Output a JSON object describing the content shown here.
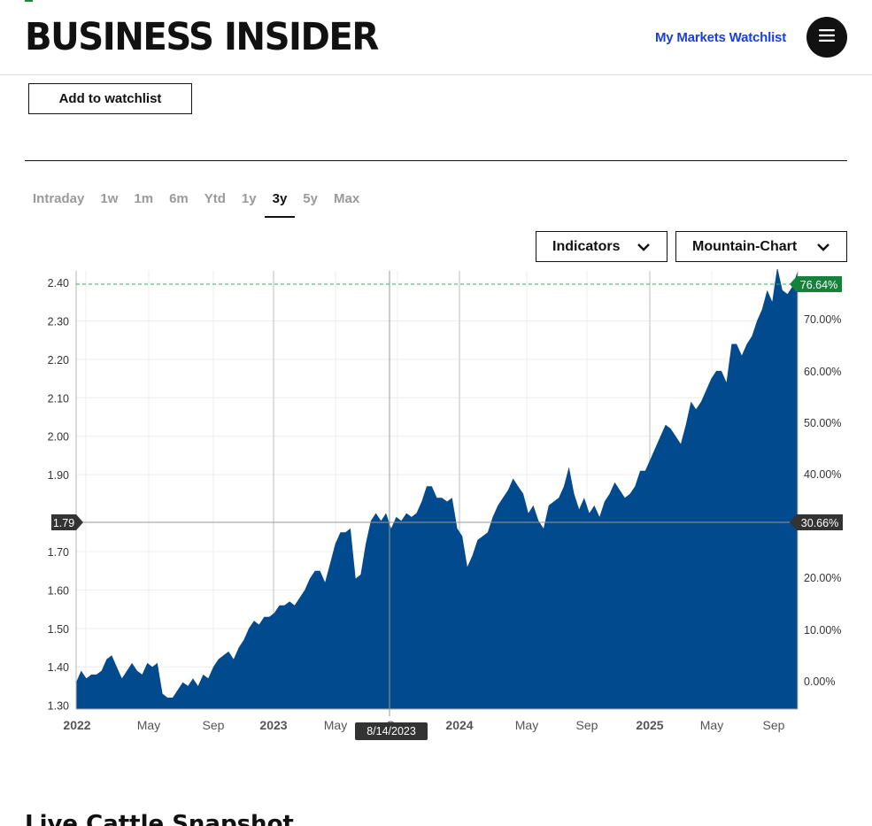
{
  "header": {
    "logo": "BUSINESS INSIDER",
    "watchlist_link": "My Markets Watchlist",
    "menu_icon": "hamburger-icon"
  },
  "actions": {
    "add_watchlist": "Add to watchlist"
  },
  "range_tabs": [
    "Intraday",
    "1w",
    "1m",
    "6m",
    "Ytd",
    "1y",
    "3y",
    "5y",
    "Max"
  ],
  "active_range": "3y",
  "dropdowns": {
    "indicators": "Indicators",
    "chart_type": "Mountain-Chart"
  },
  "colors": {
    "fill": "#004a8d",
    "accent_green": "#14823a",
    "label_dark": "#333333",
    "link_blue": "#1a3fe0"
  },
  "chart_data": {
    "type": "area",
    "y_ticks_left": [
      "2.40",
      "2.30",
      "2.20",
      "2.10",
      "2.00",
      "1.90",
      "1.70",
      "1.60",
      "1.50",
      "1.40",
      "1.30"
    ],
    "y_ticks_right": [
      "70.00%",
      "60.00%",
      "50.00%",
      "40.00%",
      "30.66%",
      "20.00%",
      "10.00%",
      "0.00%"
    ],
    "x_ticks": [
      "2022",
      "May",
      "Sep",
      "2023",
      "May",
      "Sep",
      "2024",
      "May",
      "Sep",
      "2025",
      "May",
      "Sep"
    ],
    "ylim": [
      1.3,
      2.43
    ],
    "crosshair": {
      "x_label": "8/14/2023",
      "y_label": "1.79",
      "pct_label": "30.66%"
    },
    "last_pct_label": "76.64%",
    "values": [
      1.36,
      1.39,
      1.37,
      1.38,
      1.38,
      1.39,
      1.42,
      1.43,
      1.4,
      1.37,
      1.39,
      1.41,
      1.39,
      1.38,
      1.41,
      1.4,
      1.41,
      1.33,
      1.32,
      1.32,
      1.34,
      1.36,
      1.35,
      1.37,
      1.35,
      1.38,
      1.37,
      1.4,
      1.42,
      1.43,
      1.44,
      1.42,
      1.45,
      1.47,
      1.5,
      1.52,
      1.51,
      1.53,
      1.53,
      1.54,
      1.56,
      1.56,
      1.57,
      1.56,
      1.58,
      1.6,
      1.63,
      1.65,
      1.65,
      1.62,
      1.67,
      1.72,
      1.75,
      1.75,
      1.76,
      1.63,
      1.64,
      1.72,
      1.78,
      1.8,
      1.78,
      1.8,
      1.76,
      1.79,
      1.78,
      1.8,
      1.79,
      1.8,
      1.83,
      1.87,
      1.87,
      1.84,
      1.84,
      1.83,
      1.84,
      1.76,
      1.74,
      1.66,
      1.69,
      1.73,
      1.74,
      1.75,
      1.79,
      1.82,
      1.84,
      1.86,
      1.89,
      1.87,
      1.85,
      1.8,
      1.82,
      1.78,
      1.76,
      1.82,
      1.83,
      1.84,
      1.87,
      1.92,
      1.85,
      1.81,
      1.84,
      1.8,
      1.82,
      1.79,
      1.83,
      1.85,
      1.88,
      1.86,
      1.84,
      1.85,
      1.87,
      1.91,
      1.91,
      1.94,
      1.97,
      2.0,
      2.03,
      2.02,
      2.0,
      1.98,
      2.03,
      2.09,
      2.07,
      2.09,
      2.12,
      2.15,
      2.17,
      2.17,
      2.14,
      2.24,
      2.24,
      2.21,
      2.24,
      2.26,
      2.3,
      2.33,
      2.38,
      2.35,
      2.44,
      2.38,
      2.37,
      2.39,
      2.43
    ]
  },
  "footer": {
    "section_title": "Live Cattle Snapshot"
  }
}
